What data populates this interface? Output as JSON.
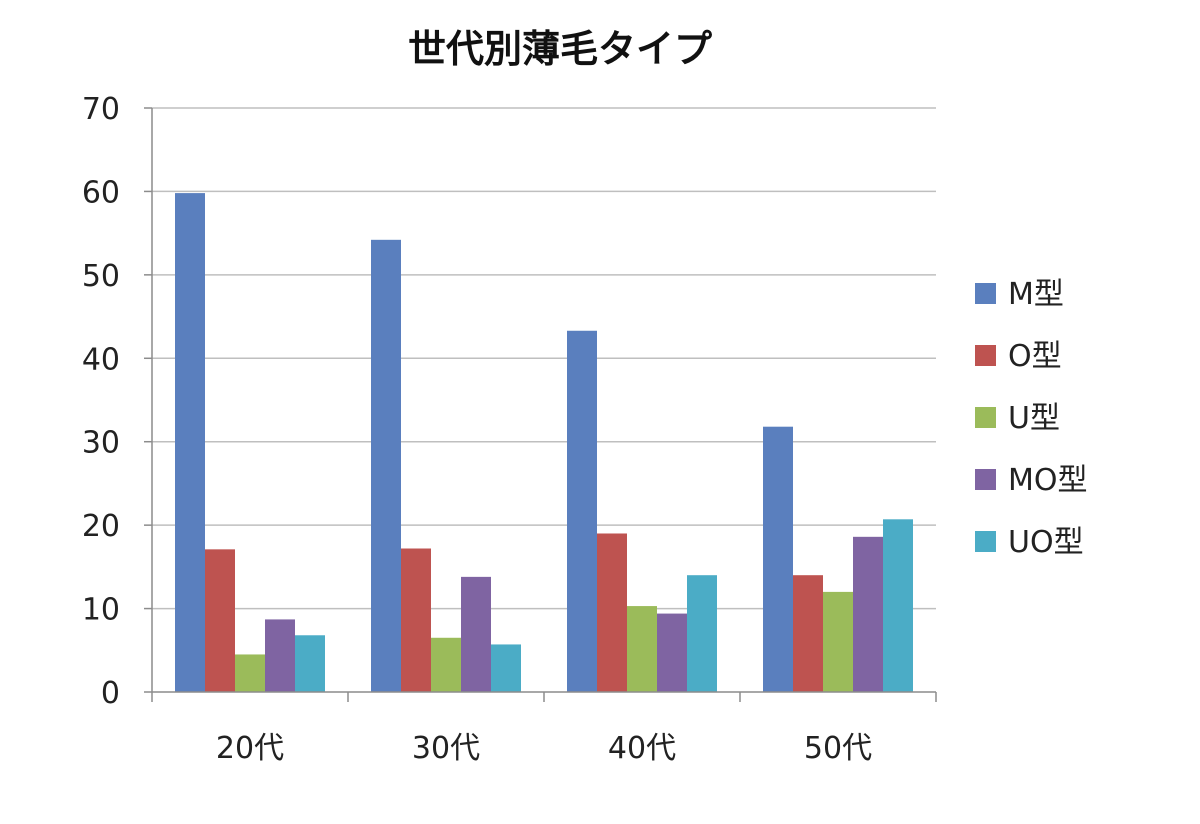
{
  "chart_data": {
    "type": "bar",
    "title": "世代別薄毛タイプ",
    "xlabel": "",
    "ylabel": "",
    "categories": [
      "20代",
      "30代",
      "40代",
      "50代"
    ],
    "series": [
      {
        "name": "M型",
        "color": "#5A7FBE",
        "values": [
          59.8,
          54.2,
          43.3,
          31.8
        ]
      },
      {
        "name": "O型",
        "color": "#BE5350",
        "values": [
          17.1,
          17.2,
          19.0,
          14.0
        ]
      },
      {
        "name": "U型",
        "color": "#9BBB5A",
        "values": [
          4.5,
          6.5,
          10.3,
          12.0
        ]
      },
      {
        "name": "MO型",
        "color": "#7F64A2",
        "values": [
          8.7,
          13.8,
          9.4,
          18.6
        ]
      },
      {
        "name": "UO型",
        "color": "#4BACC6",
        "values": [
          6.8,
          5.7,
          14.0,
          20.7
        ]
      }
    ],
    "ylim": [
      0,
      70
    ],
    "yticks": [
      0,
      10,
      20,
      30,
      40,
      50,
      60,
      70
    ],
    "grid": true,
    "legend_position": "right"
  }
}
